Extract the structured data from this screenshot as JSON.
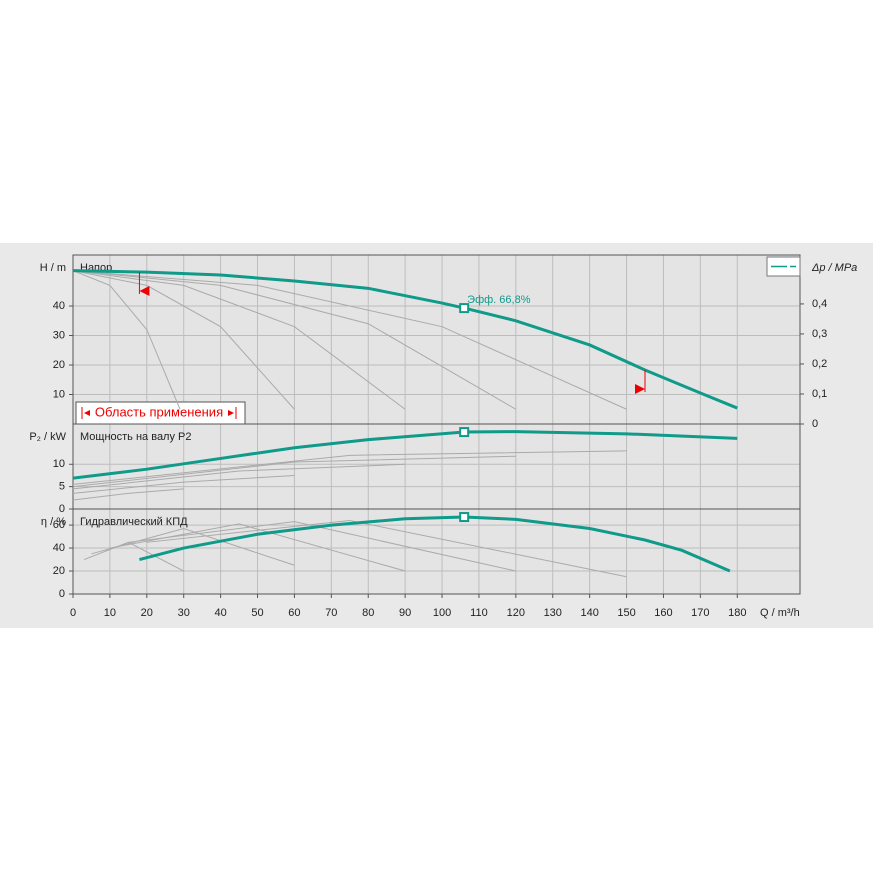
{
  "chart_data": [
    {
      "type": "line",
      "title": "Напор",
      "ylabel": "H / m",
      "y2label": "Δp / MPa",
      "xlim": [
        0,
        197
      ],
      "ylim": [
        0,
        57.3
      ],
      "yticks": [
        10,
        20,
        30,
        40
      ],
      "y2lim": [
        0,
        0.563
      ],
      "y2ticks": [
        0,
        {
          "value": 0.1,
          "label": "0,1"
        },
        {
          "value": 0.2,
          "label": "0,2"
        },
        {
          "value": 0.3,
          "label": "0,3"
        },
        {
          "value": 0.4,
          "label": "0,4"
        }
      ],
      "grid": true,
      "series": [
        {
          "color": "#aaaaaa",
          "x": [
            0,
            10,
            20,
            29
          ],
          "values": [
            52,
            47,
            32,
            5
          ]
        },
        {
          "color": "#aaaaaa",
          "x": [
            0,
            20,
            40,
            60
          ],
          "values": [
            52,
            47,
            33,
            5
          ]
        },
        {
          "color": "#aaaaaa",
          "x": [
            0,
            30,
            60,
            90
          ],
          "values": [
            52,
            47,
            33,
            5
          ]
        },
        {
          "color": "#aaaaaa",
          "x": [
            0,
            40,
            80,
            120
          ],
          "values": [
            52,
            47,
            34,
            5
          ]
        },
        {
          "color": "#aaaaaa",
          "x": [
            0,
            50,
            100,
            150
          ],
          "values": [
            52,
            47,
            33,
            5
          ]
        },
        {
          "color": "#0f9a8a",
          "x": [
            0,
            20,
            40,
            60,
            80,
            100,
            106,
            120,
            140,
            155,
            170,
            180
          ],
          "values": [
            52,
            51.5,
            50.5,
            48.5,
            46,
            41,
            39.3,
            35,
            26.8,
            18.3,
            10.5,
            5.4
          ]
        }
      ],
      "duty_point": {
        "x": 106,
        "y": 39.3
      },
      "annotation": "Эфф.  66,8%",
      "range": {
        "label": "Область применения",
        "x": [
          18,
          155
        ]
      }
    },
    {
      "type": "line",
      "title": "Мощность на валу P2",
      "ylabel": "P₂ / kW",
      "xlim": [
        0,
        197
      ],
      "ylim": [
        0,
        19
      ],
      "yticks": [
        0,
        5,
        10
      ],
      "grid": true,
      "series": [
        {
          "color": "#aaaaaa",
          "x": [
            0,
            15,
            30
          ],
          "values": [
            2,
            3.5,
            4.5
          ]
        },
        {
          "color": "#aaaaaa",
          "x": [
            0,
            30,
            60
          ],
          "values": [
            3.5,
            6,
            7.5
          ]
        },
        {
          "color": "#aaaaaa",
          "x": [
            0,
            45,
            90
          ],
          "values": [
            4.5,
            8.5,
            10
          ]
        },
        {
          "color": "#aaaaaa",
          "x": [
            0,
            60,
            120
          ],
          "values": [
            5,
            10.5,
            11.8
          ]
        },
        {
          "color": "#aaaaaa",
          "x": [
            0,
            75,
            150
          ],
          "values": [
            5.5,
            12,
            13
          ]
        },
        {
          "color": "#0f9a8a",
          "x": [
            0,
            20,
            40,
            60,
            80,
            106,
            120,
            150,
            180
          ],
          "values": [
            6.9,
            8.9,
            11.3,
            13.7,
            15.5,
            17.2,
            17.3,
            16.8,
            15.8
          ]
        }
      ],
      "duty_point": {
        "x": 106,
        "y": 17.2
      }
    },
    {
      "type": "line",
      "title": "Гидравлический КПД",
      "ylabel": "η / %",
      "xlabel": "Q / m³/h",
      "xlim": [
        0,
        197
      ],
      "ylim": [
        0,
        74
      ],
      "yticks": [
        0,
        20,
        40,
        60
      ],
      "xticks": [
        0,
        10,
        20,
        30,
        40,
        50,
        60,
        70,
        80,
        90,
        100,
        110,
        120,
        130,
        140,
        150,
        160,
        170,
        180
      ],
      "grid": true,
      "series": [
        {
          "color": "#aaaaaa",
          "x": [
            3,
            15,
            30
          ],
          "values": [
            30,
            45,
            20
          ]
        },
        {
          "color": "#aaaaaa",
          "x": [
            5,
            30,
            60
          ],
          "values": [
            35,
            57,
            25
          ]
        },
        {
          "color": "#aaaaaa",
          "x": [
            10,
            45,
            90
          ],
          "values": [
            40,
            61,
            20
          ]
        },
        {
          "color": "#aaaaaa",
          "x": [
            15,
            60,
            120
          ],
          "values": [
            45,
            63,
            20
          ]
        },
        {
          "color": "#aaaaaa",
          "x": [
            20,
            75,
            150
          ],
          "values": [
            45,
            64,
            15
          ]
        },
        {
          "color": "#0f9a8a",
          "x": [
            18,
            30,
            50,
            70,
            90,
            106,
            120,
            140,
            155,
            165,
            178
          ],
          "values": [
            30,
            40,
            52,
            60,
            65.5,
            67,
            65,
            57,
            47,
            38,
            20
          ]
        }
      ],
      "duty_point": {
        "x": 106,
        "y": 67
      }
    }
  ]
}
